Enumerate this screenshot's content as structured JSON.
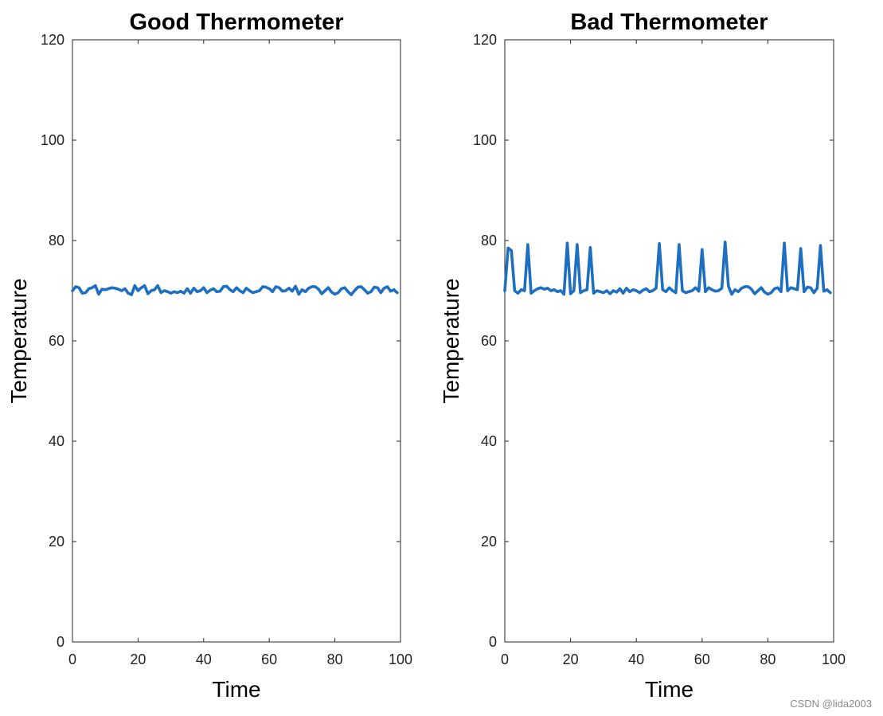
{
  "chart_data": [
    {
      "type": "line",
      "title": "Good Thermometer",
      "xlabel": "Time",
      "ylabel": "Temperature",
      "xlim": [
        0,
        100
      ],
      "ylim": [
        0,
        120
      ],
      "xticks": [
        0,
        20,
        40,
        60,
        80,
        100
      ],
      "yticks": [
        0,
        20,
        40,
        60,
        80,
        100,
        120
      ],
      "grid": false,
      "color": "#1f6fc0",
      "series": [
        {
          "x": [
            0,
            1,
            2,
            3,
            4,
            5,
            6,
            7,
            8,
            9,
            10,
            11,
            12,
            13,
            14,
            15,
            16,
            17,
            18,
            19,
            20,
            21,
            22,
            23,
            24,
            25,
            26,
            27,
            28,
            29,
            30,
            31,
            32,
            33,
            34,
            35,
            36,
            37,
            38,
            39,
            40,
            41,
            42,
            43,
            44,
            45,
            46,
            47,
            48,
            49,
            50,
            51,
            52,
            53,
            54,
            55,
            56,
            57,
            58,
            59,
            60,
            61,
            62,
            63,
            64,
            65,
            66,
            67,
            68,
            69,
            70,
            71,
            72,
            73,
            74,
            75,
            76,
            77,
            78,
            79,
            80,
            81,
            82,
            83,
            84,
            85,
            86,
            87,
            88,
            89,
            90,
            91,
            92,
            93,
            94,
            95,
            96,
            97,
            98,
            99
          ],
          "values": [
            70.0,
            70.8,
            70.6,
            69.5,
            69.6,
            70.4,
            70.6,
            71.0,
            69.3,
            70.3,
            70.2,
            70.4,
            70.6,
            70.5,
            70.3,
            70.0,
            70.4,
            69.5,
            69.2,
            71.0,
            70.0,
            70.6,
            71.0,
            69.4,
            70.0,
            70.2,
            71.0,
            69.6,
            70.0,
            69.8,
            69.5,
            69.8,
            69.6,
            69.9,
            69.5,
            70.4,
            69.5,
            70.5,
            69.8,
            70.0,
            70.6,
            69.6,
            70.1,
            70.4,
            69.8,
            69.9,
            70.8,
            70.9,
            70.2,
            69.8,
            70.6,
            70.0,
            69.6,
            70.5,
            70.0,
            69.6,
            69.8,
            70.0,
            70.8,
            70.7,
            70.4,
            69.8,
            70.8,
            70.6,
            69.9,
            70.0,
            70.5,
            69.9,
            70.9,
            69.3,
            70.2,
            69.8,
            70.5,
            70.8,
            70.8,
            70.3,
            69.4,
            70.0,
            70.6,
            69.7,
            69.3,
            69.6,
            70.4,
            70.6,
            69.8,
            69.2,
            70.0,
            70.7,
            70.8,
            70.2,
            69.5,
            69.8,
            70.7,
            70.6,
            69.6,
            70.5,
            70.8,
            69.9,
            70.2,
            69.6
          ]
        }
      ]
    },
    {
      "type": "line",
      "title": "Bad Thermometer",
      "xlabel": "Time",
      "ylabel": "Temperature",
      "xlim": [
        0,
        100
      ],
      "ylim": [
        0,
        120
      ],
      "xticks": [
        0,
        20,
        40,
        60,
        80,
        100
      ],
      "yticks": [
        0,
        20,
        40,
        60,
        80,
        100,
        120
      ],
      "grid": false,
      "color": "#1f6fc0",
      "series": [
        {
          "x": [
            0,
            1,
            2,
            3,
            4,
            5,
            6,
            7,
            8,
            9,
            10,
            11,
            12,
            13,
            14,
            15,
            16,
            17,
            18,
            19,
            20,
            21,
            22,
            23,
            24,
            25,
            26,
            27,
            28,
            29,
            30,
            31,
            32,
            33,
            34,
            35,
            36,
            37,
            38,
            39,
            40,
            41,
            42,
            43,
            44,
            45,
            46,
            47,
            48,
            49,
            50,
            51,
            52,
            53,
            54,
            55,
            56,
            57,
            58,
            59,
            60,
            61,
            62,
            63,
            64,
            65,
            66,
            67,
            68,
            69,
            70,
            71,
            72,
            73,
            74,
            75,
            76,
            77,
            78,
            79,
            80,
            81,
            82,
            83,
            84,
            85,
            86,
            87,
            88,
            89,
            90,
            91,
            92,
            93,
            94,
            95,
            96,
            97,
            98,
            99
          ],
          "values": [
            70.0,
            78.5,
            78.0,
            70.0,
            69.5,
            70.2,
            70.0,
            79.2,
            69.5,
            70.0,
            70.4,
            70.6,
            70.3,
            70.5,
            70.0,
            70.2,
            69.8,
            70.0,
            69.3,
            79.5,
            69.4,
            70.0,
            79.2,
            69.6,
            70.0,
            70.2,
            78.6,
            69.5,
            70.0,
            69.8,
            69.6,
            70.0,
            69.4,
            70.0,
            69.7,
            70.4,
            69.5,
            70.5,
            69.8,
            70.2,
            70.0,
            69.6,
            70.1,
            70.4,
            69.8,
            70.0,
            70.5,
            79.4,
            70.2,
            69.8,
            70.6,
            70.0,
            69.6,
            79.2,
            70.0,
            69.6,
            69.8,
            70.0,
            70.6,
            69.9,
            78.2,
            69.8,
            70.6,
            70.2,
            69.9,
            70.0,
            70.5,
            79.7,
            70.9,
            69.3,
            70.2,
            69.8,
            70.5,
            70.8,
            70.8,
            70.3,
            69.4,
            70.0,
            70.6,
            69.7,
            69.3,
            69.6,
            70.4,
            70.6,
            69.8,
            79.5,
            70.0,
            70.6,
            70.4,
            70.2,
            78.4,
            69.8,
            70.7,
            70.6,
            69.6,
            70.5,
            79.0,
            69.9,
            70.2,
            69.6
          ]
        }
      ]
    }
  ],
  "watermark": "CSDN @lida2003"
}
